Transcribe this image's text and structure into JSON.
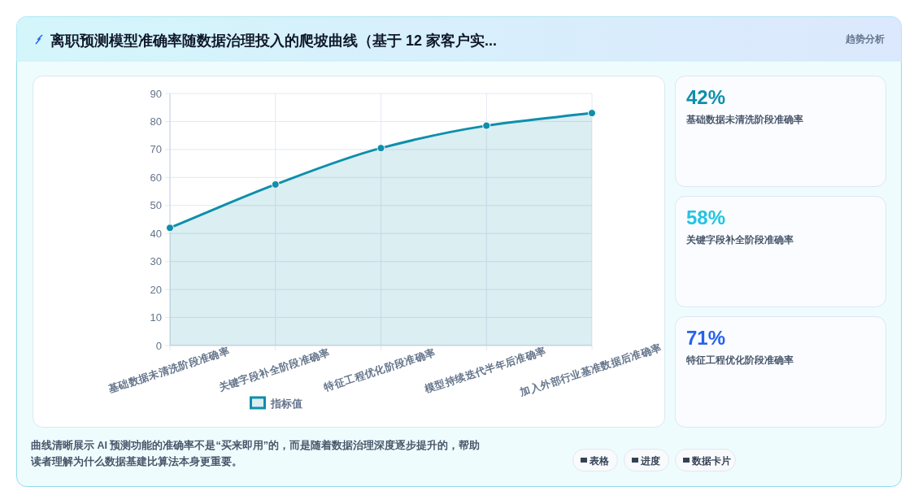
{
  "chart_data": [
    {
      "type": "area",
      "title": "离职预测模型准确率随数据治理投入的爬坡曲线（基于 12 家客户实...",
      "categories": [
        "基础数据未清洗阶段准确率",
        "关键字段补全阶段准确率",
        "特征工程优化阶段准确率",
        "模型持续迭代半年后准确率",
        "加入外部行业基准数据后准确率"
      ],
      "series": [
        {
          "name": "指标值",
          "color": "#0e8fab",
          "values": [
            42,
            57.5,
            70.5,
            78.5,
            83
          ]
        }
      ],
      "ylim": [
        0,
        90
      ],
      "yticks": [
        0,
        10,
        20,
        30,
        40,
        50,
        60,
        70,
        80,
        90
      ],
      "grid": true,
      "legend": "bottom",
      "marker": "circle",
      "line_style": "solid",
      "annotations": [
        "曲线清晰展示 AI 预测功能的准确率不是“买来即用”的，而是随着数据治理深度逐步提升的，帮助读者理解为什么数据基建比算法本身更重要。",
        "表格",
        "进度",
        "数据卡片"
      ]
    },
    {
      "type": "other",
      "annotations": [
        "42%",
        "基础数据未清洗阶段准确率",
        "58%",
        "关键字段补全阶段准确率",
        "71%",
        "特征工程优化阶段准确率",
        "趋势分析"
      ],
      "colors": [
        "#0e8fab",
        "#22c5e0",
        "#2563eb"
      ]
    }
  ]
}
